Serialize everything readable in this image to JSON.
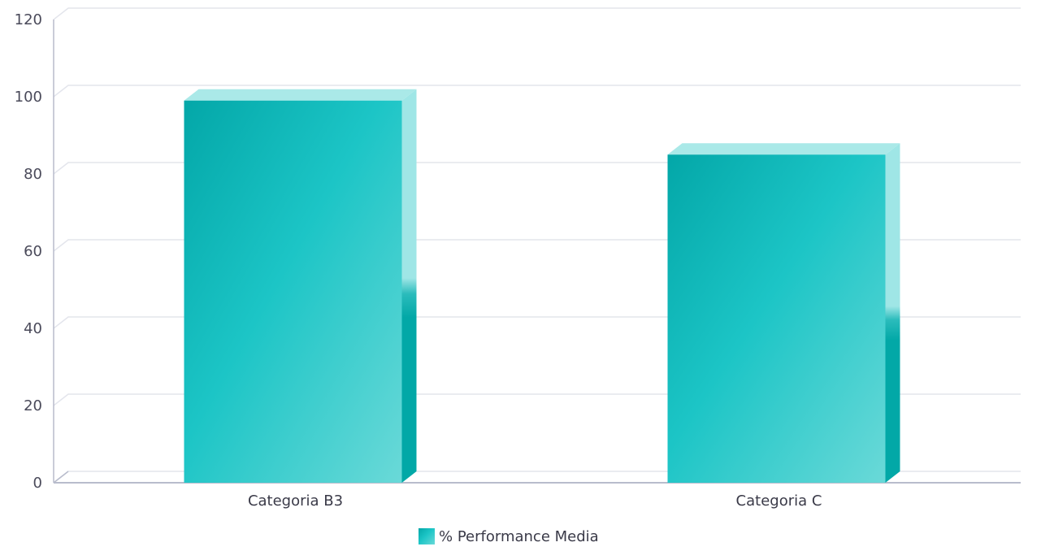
{
  "chart_data": {
    "type": "bar",
    "categories": [
      "Categoria B3",
      "Categoria C"
    ],
    "series": [
      {
        "name": "% Performance Media",
        "values": [
          99,
          85
        ]
      }
    ],
    "ylim": [
      0,
      120
    ],
    "yticks": [
      0,
      20,
      40,
      60,
      80,
      100,
      120
    ],
    "grid": true,
    "legend_position": "bottom-center",
    "colors": {
      "bar_dark": "#03a7a8",
      "bar_mid": "#1cc5c6",
      "bar_light": "#6ad9d8",
      "bar_top": "#aae9e8",
      "bar_side_light": "#9fe6e6",
      "bar_side_dark": "#02a8a7",
      "grid": "#e3e5ec",
      "axis": "#b8bccc"
    }
  }
}
